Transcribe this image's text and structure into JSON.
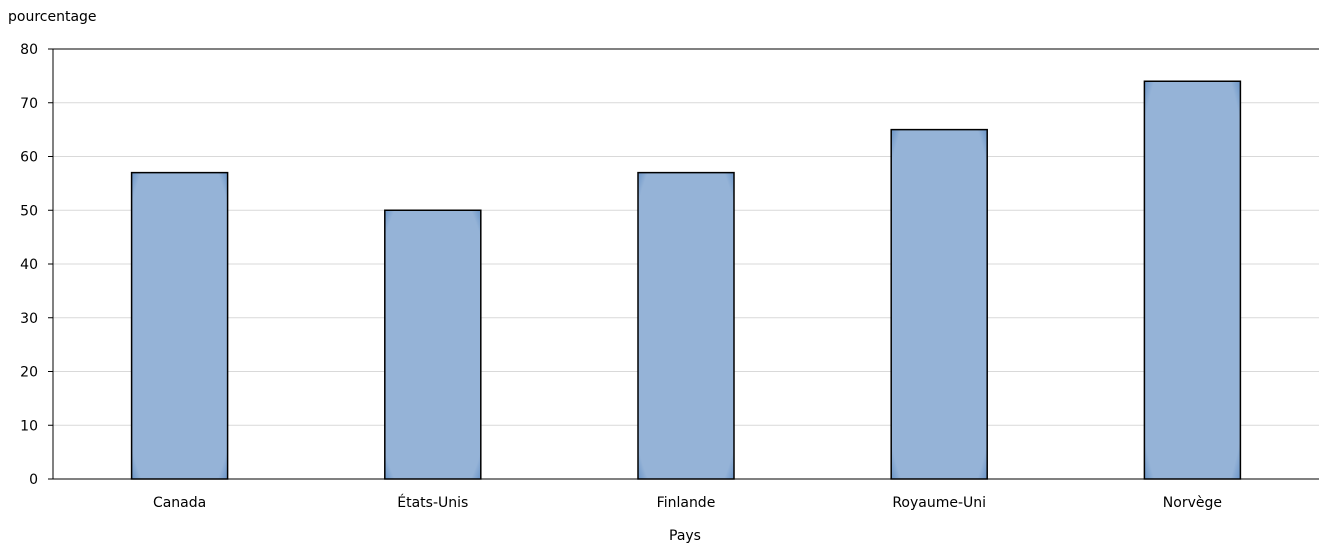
{
  "chart_data": {
    "type": "bar",
    "title": "",
    "ylabel": "pourcentage",
    "xlabel": "Pays",
    "categories": [
      "Canada",
      "États-Unis",
      "Finlande",
      "Royaume-Uni",
      "Norvège"
    ],
    "values": [
      57,
      50,
      57,
      65,
      74
    ],
    "ylim": [
      0,
      80
    ],
    "yticks": [
      "0",
      "10",
      "20",
      "30",
      "40",
      "50",
      "60",
      "70",
      "80"
    ],
    "grid": true,
    "bar_color": "#95b3d7",
    "bar_edge_color": "#4f81bd"
  }
}
